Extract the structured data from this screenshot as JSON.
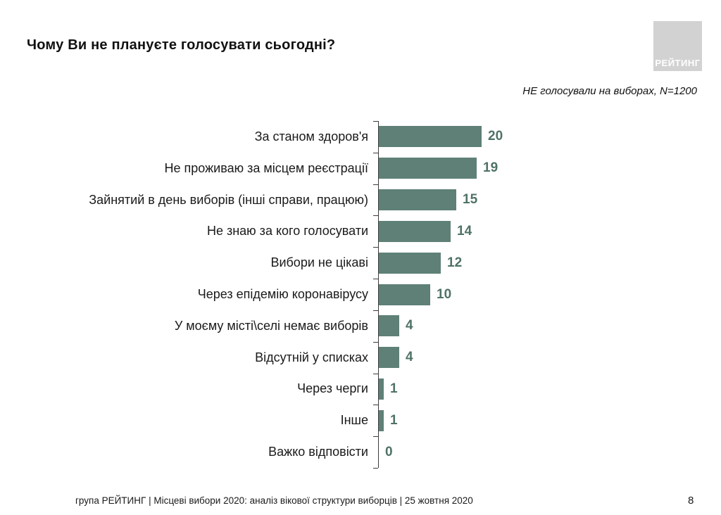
{
  "slide": {
    "title": "Чому Ви не плануєте голосувати сьогодні?",
    "logo_text": "РЕЙТИНГ",
    "subtitle": "НЕ голосували на виборах, N=1200",
    "footer": "група РЕЙТИНГ | Місцеві вибори 2020: аналіз вікової структури виборців | 25 жовтня 2020",
    "page_number": "8"
  },
  "colors": {
    "bar": "#5e8077",
    "value_label": "#4f7268",
    "axis": "#3c3c3c",
    "logo_background": "#d2d2d2",
    "logo_text": "#ffffff",
    "text": "#1a1a1a"
  },
  "chart_data": {
    "type": "bar",
    "orientation": "horizontal",
    "title": "Чому Ви не плануєте голосувати сьогодні?",
    "subtitle": "НЕ голосували на виборах, N=1200",
    "categories": [
      "За станом здоров'я",
      "Не проживаю за місцем реєстрації",
      "Зайнятий в день виборів (інші справи, працюю)",
      "Не знаю за кого голосувати",
      "Вибори не цікаві",
      "Через епідемію коронавірусу",
      "У моєму місті\\селі немає виборів",
      "Відсутній у списках",
      "Через черги",
      "Інше",
      "Важко відповісти"
    ],
    "values": [
      20,
      19,
      15,
      14,
      12,
      10,
      4,
      4,
      1,
      1,
      0
    ],
    "xlabel": "",
    "ylabel": "",
    "xlim": [
      0,
      22
    ],
    "grid": false,
    "legend": false,
    "data_labels_shown": true
  }
}
